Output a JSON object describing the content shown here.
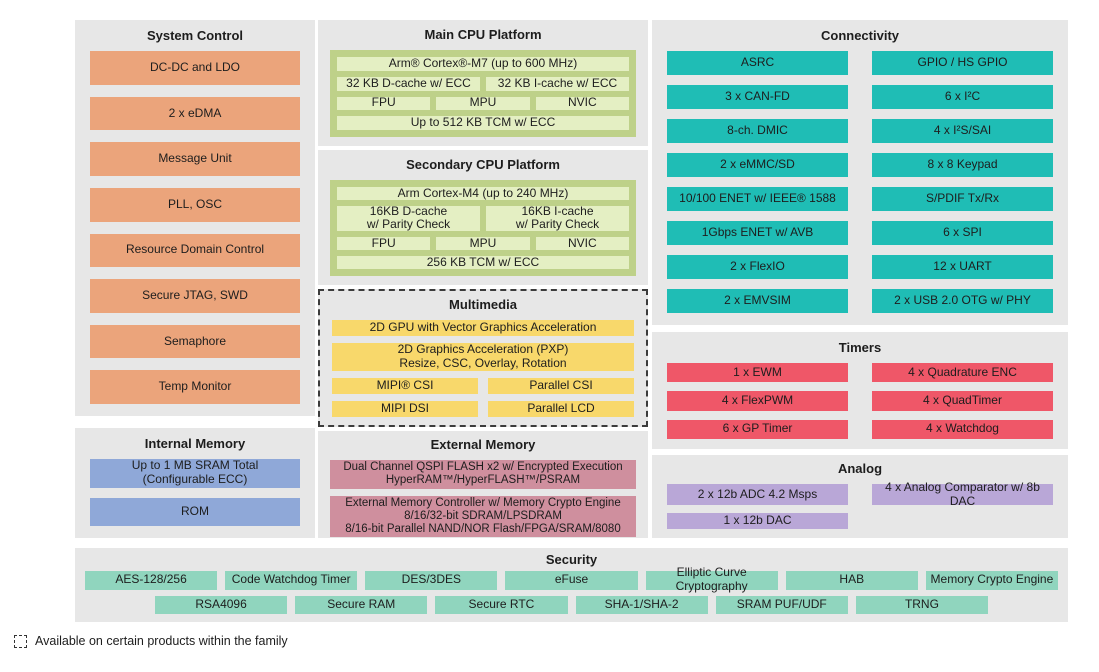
{
  "colors": {
    "panel_bg": "#e7e7e7",
    "system_control": "#eba47b",
    "internal_memory": "#8fa8d8",
    "cpu_container": "#bed189",
    "cpu_block": "#e4efc3",
    "multimedia": "#f8d86b",
    "external_memory": "#cf8f9e",
    "connectivity": "#1fbdb5",
    "timers": "#ef5768",
    "analog": "#b9a7d7",
    "security": "#90d5be"
  },
  "system_control": {
    "title": "System Control",
    "items": [
      "DC-DC and LDO",
      "2 x eDMA",
      "Message Unit",
      "PLL, OSC",
      "Resource Domain Control",
      "Secure JTAG, SWD",
      "Semaphore",
      "Temp Monitor"
    ]
  },
  "internal_memory": {
    "title": "Internal Memory",
    "items": [
      "Up to 1 MB SRAM Total\n(Configurable ECC)",
      "ROM"
    ]
  },
  "main_cpu": {
    "title": "Main CPU Platform",
    "core": "Arm® Cortex®-M7 (up to 600 MHz)",
    "dcache": "32 KB D-cache w/ ECC",
    "icache": "32 KB I-cache w/ ECC",
    "fpu": "FPU",
    "mpu": "MPU",
    "nvic": "NVIC",
    "tcm": "Up to 512 KB TCM w/ ECC"
  },
  "secondary_cpu": {
    "title": "Secondary CPU Platform",
    "core": "Arm Cortex-M4 (up to 240 MHz)",
    "dcache": "16KB D-cache\nw/ Parity Check",
    "icache": "16KB I-cache\nw/ Parity Check",
    "fpu": "FPU",
    "mpu": "MPU",
    "nvic": "NVIC",
    "tcm": "256 KB TCM w/ ECC"
  },
  "multimedia": {
    "title": "Multimedia",
    "gpu": "2D GPU with Vector Graphics Acceleration",
    "pxp": "2D Graphics Acceleration (PXP)\nResize, CSC, Overlay, Rotation",
    "mipi_csi": "MIPI® CSI",
    "parallel_csi": "Parallel CSI",
    "mipi_dsi": "MIPI DSI",
    "parallel_lcd": "Parallel LCD"
  },
  "external_memory": {
    "title": "External Memory",
    "items": [
      "Dual Channel QSPI FLASH x2 w/ Encrypted Execution\nHyperRAM™/HyperFLASH™/PSRAM",
      "External Memory Controller w/ Memory Crypto Engine\n8/16/32-bit SDRAM/LPSDRAM\n8/16-bit Parallel NAND/NOR Flash/FPGA/SRAM/8080"
    ]
  },
  "connectivity": {
    "title": "Connectivity",
    "left": [
      "ASRC",
      "3 x CAN-FD",
      "8-ch. DMIC",
      "2 x eMMC/SD",
      "10/100 ENET w/ IEEE® 1588",
      "1Gbps ENET w/ AVB",
      "2 x FlexIO",
      "2 x EMVSIM"
    ],
    "right": [
      "GPIO / HS GPIO",
      "6 x I²C",
      "4 x I²S/SAI",
      "8 x 8 Keypad",
      "S/PDIF Tx/Rx",
      "6 x SPI",
      "12 x UART",
      "2 x USB 2.0 OTG w/ PHY"
    ]
  },
  "timers": {
    "title": "Timers",
    "left": [
      "1 x EWM",
      "4 x FlexPWM",
      "6 x GP Timer"
    ],
    "right": [
      "4 x Quadrature ENC",
      "4 x QuadTimer",
      "4 x Watchdog"
    ]
  },
  "analog": {
    "title": "Analog",
    "items": [
      "2 x 12b ADC 4.2 Msps",
      "4 x Analog Comparator w/ 8b DAC",
      "1 x 12b DAC"
    ]
  },
  "security": {
    "title": "Security",
    "row1": [
      "AES-128/256",
      "Code Watchdog Timer",
      "DES/3DES",
      "eFuse",
      "Elliptic Curve Cryptography",
      "HAB",
      "Memory Crypto Engine"
    ],
    "row2": [
      "RSA4096",
      "Secure RAM",
      "Secure RTC",
      "SHA-1/SHA-2",
      "SRAM PUF/UDF",
      "TRNG"
    ]
  },
  "legend": {
    "text": "Available on certain products within the family"
  }
}
